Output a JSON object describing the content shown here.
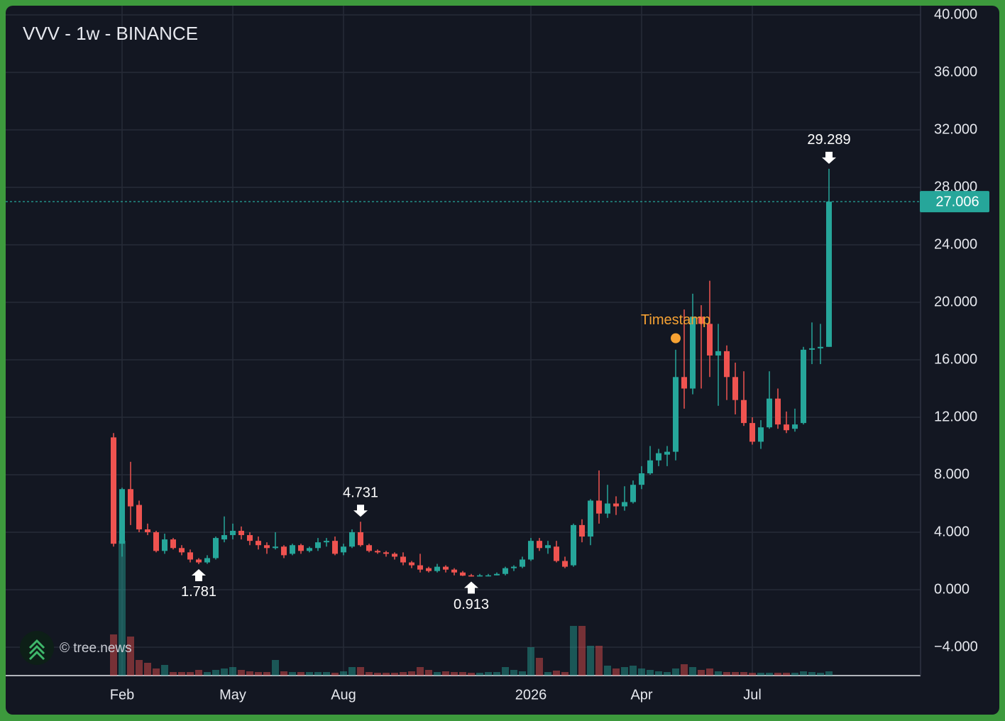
{
  "chart_data": {
    "type": "candlestick",
    "title": "VVV - 1w - BINANCE",
    "watermark": "© tree.news",
    "categories": [
      null,
      "Feb",
      null,
      null,
      null,
      null,
      null,
      null,
      null,
      null,
      null,
      null,
      null,
      null,
      "May",
      null,
      null,
      null,
      null,
      null,
      null,
      null,
      null,
      null,
      null,
      null,
      null,
      "Aug",
      null,
      null,
      null,
      null,
      null,
      null,
      null,
      null,
      null,
      null,
      null,
      null,
      null,
      null,
      null,
      null,
      null,
      null,
      null,
      null,
      null,
      "2026",
      null,
      null,
      null,
      null,
      null,
      null,
      null,
      null,
      null,
      null,
      null,
      null,
      "Apr",
      null,
      null,
      null,
      null,
      null,
      null,
      null,
      null,
      null,
      null,
      null,
      null,
      "Jul",
      null,
      null,
      null,
      null,
      null,
      null,
      null,
      null,
      null
    ],
    "open": [
      10.6,
      3.2,
      7.0,
      5.9,
      4.2,
      4.0,
      2.7,
      3.5,
      2.9,
      2.6,
      2.1,
      1.9,
      2.2,
      3.5,
      3.8,
      4.1,
      3.8,
      3.4,
      3.1,
      2.9,
      3.0,
      2.5,
      3.1,
      2.7,
      2.9,
      3.3,
      3.4,
      2.6,
      3.0,
      4.0,
      3.1,
      2.7,
      2.6,
      2.5,
      2.3,
      1.9,
      1.7,
      1.5,
      1.3,
      1.6,
      1.4,
      1.2,
      1.0,
      0.92,
      0.95,
      1.0,
      1.1,
      1.5,
      1.6,
      2.1,
      3.4,
      2.9,
      3.0,
      2.0,
      1.7,
      4.5,
      3.7,
      6.2,
      5.3,
      6.0,
      5.8,
      6.1,
      7.3,
      8.1,
      9.0,
      9.4,
      9.6,
      14.8,
      14.0,
      19.0,
      18.5,
      16.3,
      16.6,
      14.8,
      13.2,
      11.6,
      10.3,
      11.3,
      13.3,
      11.5,
      11.2,
      11.6,
      16.7,
      16.8,
      16.9
    ],
    "high": [
      10.9,
      7.1,
      8.9,
      6.2,
      4.6,
      4.1,
      3.9,
      3.6,
      3.1,
      2.8,
      2.2,
      2.4,
      3.7,
      5.1,
      4.6,
      4.4,
      4.0,
      3.7,
      3.3,
      4.0,
      3.1,
      3.2,
      3.2,
      3.0,
      3.6,
      3.6,
      3.7,
      3.2,
      4.2,
      4.731,
      3.2,
      2.8,
      2.7,
      2.6,
      2.6,
      2.0,
      2.5,
      1.6,
      1.8,
      1.7,
      1.5,
      1.3,
      1.1,
      1.1,
      1.1,
      1.2,
      1.6,
      1.7,
      2.3,
      3.6,
      3.6,
      3.4,
      3.4,
      2.3,
      4.6,
      4.9,
      6.3,
      8.3,
      7.3,
      6.5,
      7.2,
      7.6,
      8.6,
      10.0,
      9.8,
      10.0,
      16.7,
      19.5,
      20.6,
      19.8,
      21.5,
      18.5,
      17.0,
      15.8,
      15.2,
      12.0,
      11.8,
      15.2,
      14.0,
      12.4,
      12.6,
      16.9,
      18.6,
      18.5,
      29.289
    ],
    "low": [
      3.0,
      2.3,
      4.5,
      4.0,
      3.8,
      2.6,
      2.5,
      2.8,
      2.4,
      1.9,
      1.781,
      1.8,
      2.1,
      3.3,
      3.5,
      3.5,
      3.1,
      2.8,
      2.5,
      2.8,
      2.2,
      2.4,
      2.5,
      2.6,
      2.7,
      3.0,
      2.4,
      2.4,
      2.9,
      3.0,
      2.6,
      2.5,
      2.3,
      2.1,
      1.7,
      1.5,
      1.2,
      1.2,
      1.2,
      1.2,
      1.0,
      0.95,
      0.913,
      0.93,
      0.93,
      1.0,
      1.0,
      1.3,
      1.5,
      2.0,
      2.7,
      2.5,
      1.9,
      1.5,
      1.6,
      3.3,
      3.1,
      4.6,
      5.0,
      5.2,
      5.5,
      6.0,
      7.0,
      8.0,
      8.6,
      8.6,
      9.0,
      12.6,
      13.6,
      14.0,
      14.8,
      12.8,
      13.2,
      12.2,
      11.4,
      10.1,
      9.8,
      11.2,
      11.2,
      10.9,
      11.0,
      11.5,
      15.7,
      15.7,
      16.9
    ],
    "close": [
      3.2,
      7.0,
      5.8,
      4.2,
      4.0,
      2.7,
      3.5,
      2.9,
      2.6,
      2.1,
      1.9,
      2.2,
      3.6,
      3.8,
      4.1,
      3.8,
      3.4,
      3.1,
      2.9,
      3.0,
      2.4,
      3.1,
      2.7,
      2.9,
      3.3,
      3.4,
      2.5,
      3.0,
      4.0,
      3.1,
      2.7,
      2.6,
      2.5,
      2.3,
      1.9,
      1.7,
      1.4,
      1.3,
      1.6,
      1.4,
      1.2,
      0.98,
      0.92,
      1.0,
      1.0,
      1.1,
      1.5,
      1.6,
      2.1,
      3.4,
      2.9,
      3.1,
      2.0,
      1.6,
      4.5,
      3.7,
      6.2,
      5.3,
      6.0,
      5.8,
      6.1,
      7.3,
      8.1,
      9.0,
      9.5,
      9.6,
      14.8,
      14.0,
      19.0,
      18.5,
      16.3,
      16.6,
      14.8,
      13.2,
      11.6,
      10.3,
      11.3,
      13.3,
      11.5,
      11.1,
      11.5,
      16.7,
      16.8,
      16.9,
      27.006
    ],
    "volume": [
      58,
      190,
      55,
      22,
      18,
      10,
      15,
      5,
      5,
      5,
      8,
      5,
      8,
      10,
      12,
      8,
      6,
      5,
      5,
      22,
      6,
      5,
      5,
      5,
      5,
      5,
      4,
      6,
      12,
      12,
      5,
      4,
      4,
      4,
      5,
      6,
      12,
      8,
      5,
      6,
      5,
      5,
      4,
      4,
      5,
      5,
      12,
      8,
      6,
      40,
      25,
      5,
      7,
      5,
      70,
      70,
      42,
      42,
      14,
      10,
      12,
      14,
      10,
      8,
      6,
      5,
      10,
      16,
      12,
      8,
      10,
      6,
      5,
      5,
      5,
      4,
      4,
      4,
      4,
      4,
      4,
      6,
      5,
      4,
      6
    ],
    "up_color": "#26a69a",
    "down_color": "#ef5350",
    "ylim": [
      -5.975,
      40.642
    ],
    "yticks": [
      {
        "value": -4,
        "label": "−4.000"
      },
      {
        "value": 0,
        "label": "0.000"
      },
      {
        "value": 4,
        "label": "4.000"
      },
      {
        "value": 8,
        "label": "8.000"
      },
      {
        "value": 12,
        "label": "12.000"
      },
      {
        "value": 16,
        "label": "16.000"
      },
      {
        "value": 20,
        "label": "20.000"
      },
      {
        "value": 24,
        "label": "24.000"
      },
      {
        "value": 28,
        "label": "28.000"
      },
      {
        "value": 32,
        "label": "32.000"
      },
      {
        "value": 36,
        "label": "36.000"
      },
      {
        "value": 40,
        "label": "40.000"
      }
    ],
    "grid": true,
    "last_price": {
      "value": 27.006,
      "label": "27.006"
    },
    "annotations": [
      {
        "index": 10,
        "kind": "low",
        "value": 1.781
      },
      {
        "index": 29,
        "kind": "high",
        "value": 4.731
      },
      {
        "index": 42,
        "kind": "low",
        "value": 0.913
      },
      {
        "index": 84,
        "kind": "high",
        "value": 29.289
      }
    ],
    "marker": {
      "label": "Timestamp",
      "index": 66,
      "value": 17.5,
      "color": "#f7a233"
    }
  }
}
